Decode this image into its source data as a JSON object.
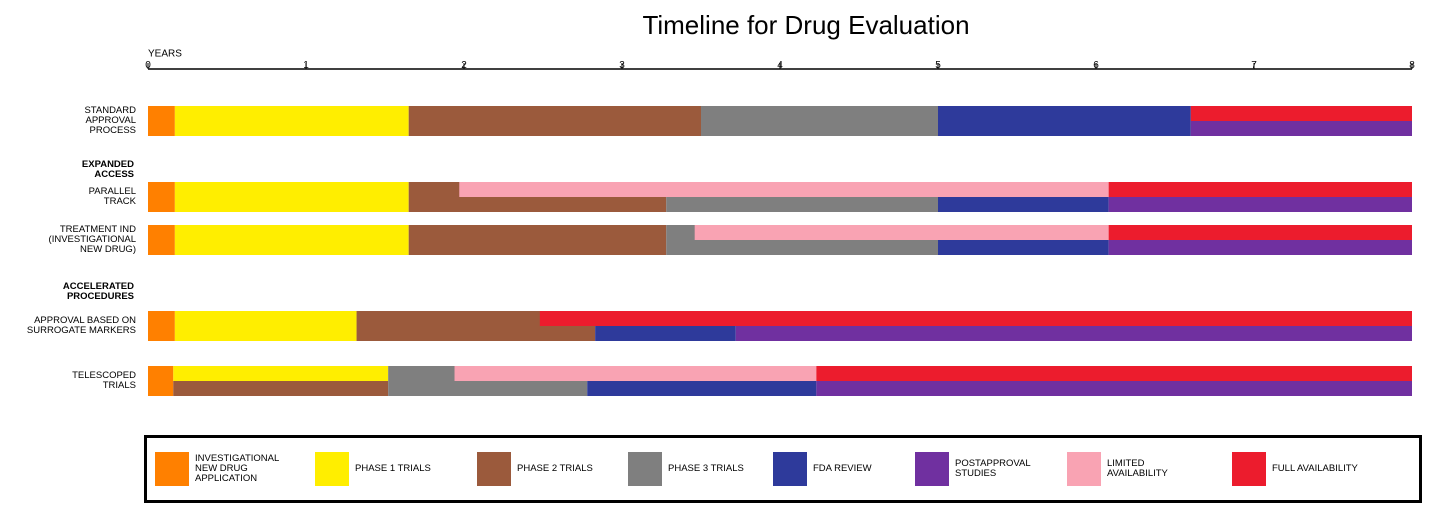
{
  "chart_data": {
    "type": "timeline",
    "title": "Timeline for Drug Evaluation",
    "xlabel": "YEARS",
    "xlim": [
      0,
      8
    ],
    "xticks": [
      0,
      1,
      2,
      3,
      4,
      5,
      6,
      7,
      8
    ],
    "categories": [
      "STANDARD APPROVAL PROCESS",
      "PARALLEL TRACK",
      "TREATMENT IND (INVESTIGATIONAL NEW DRUG)",
      "APPROVAL BASED ON SURROGATE MARKERS",
      "TELESCOPED TRIALS"
    ],
    "group_labels": [
      "EXPANDED ACCESS",
      "ACCELERATED PROCEDURES"
    ],
    "series": [
      {
        "name": "INVESTIGATIONAL NEW DRUG APPLICATION",
        "color": "#ff8000",
        "values": [
          [
            0,
            0.17
          ],
          [
            0,
            0.17
          ],
          [
            0,
            0.17
          ],
          [
            0,
            0.17
          ],
          [
            0,
            0.16
          ]
        ],
        "lanes": [
          "full",
          "full",
          "full",
          "full",
          "full"
        ]
      },
      {
        "name": "PHASE 1 TRIALS",
        "color": "#ffee00",
        "values": [
          [
            0.17,
            1.65
          ],
          [
            0.17,
            1.65
          ],
          [
            0.17,
            1.65
          ],
          [
            0.17,
            1.32
          ],
          [
            0.16,
            1.52
          ]
        ],
        "lanes": [
          "full",
          "full",
          "full",
          "full",
          "top"
        ]
      },
      {
        "name": "PHASE 2 TRIALS",
        "color": "#9b5a3c",
        "values": [
          [
            1.65,
            3.5
          ],
          [
            1.65,
            3.28
          ],
          [
            1.65,
            3.28
          ],
          [
            1.32,
            2.83
          ],
          [
            0.16,
            1.52
          ]
        ],
        "lanes": [
          "full",
          "full",
          "full",
          "full",
          "bottom"
        ]
      },
      {
        "name": "PHASE 3 TRIALS",
        "color": "#7f7f7f",
        "values": [
          [
            3.5,
            5
          ],
          [
            3.28,
            5
          ],
          [
            3.28,
            5
          ],
          null,
          [
            1.52,
            2.78
          ]
        ],
        "lanes": [
          "full",
          "full",
          "full",
          null,
          "full"
        ]
      },
      {
        "name": "FDA REVIEW",
        "color": "#2e3a9b",
        "values": [
          [
            5,
            6.6
          ],
          [
            5,
            6.08
          ],
          [
            5,
            6.08
          ],
          [
            2.83,
            3.72
          ],
          [
            2.78,
            4.23
          ]
        ],
        "lanes": [
          "full",
          "bottom",
          "bottom",
          "bottom",
          "bottom"
        ]
      },
      {
        "name": "POSTAPPROVAL STUDIES",
        "color": "#7030a0",
        "values": [
          [
            6.6,
            8
          ],
          [
            6.08,
            8
          ],
          [
            6.08,
            8
          ],
          [
            3.72,
            8
          ],
          [
            4.23,
            8
          ]
        ],
        "lanes": [
          "bottom",
          "bottom",
          "bottom",
          "bottom",
          "bottom"
        ]
      },
      {
        "name": "LIMITED AVAILABILITY",
        "color": "#f9a3b3",
        "values": [
          null,
          [
            1.97,
            6.08
          ],
          [
            3.46,
            6.08
          ],
          null,
          [
            1.94,
            4.23
          ]
        ],
        "lanes": [
          null,
          "top",
          "top",
          null,
          "top"
        ]
      },
      {
        "name": "FULL AVAILABILITY",
        "color": "#ec1c2d",
        "values": [
          [
            6.6,
            8
          ],
          [
            6.08,
            8
          ],
          [
            6.08,
            8
          ],
          [
            2.48,
            8
          ],
          [
            4.23,
            8
          ]
        ],
        "lanes": [
          "top",
          "top",
          "top",
          "top",
          "top"
        ]
      }
    ]
  }
}
